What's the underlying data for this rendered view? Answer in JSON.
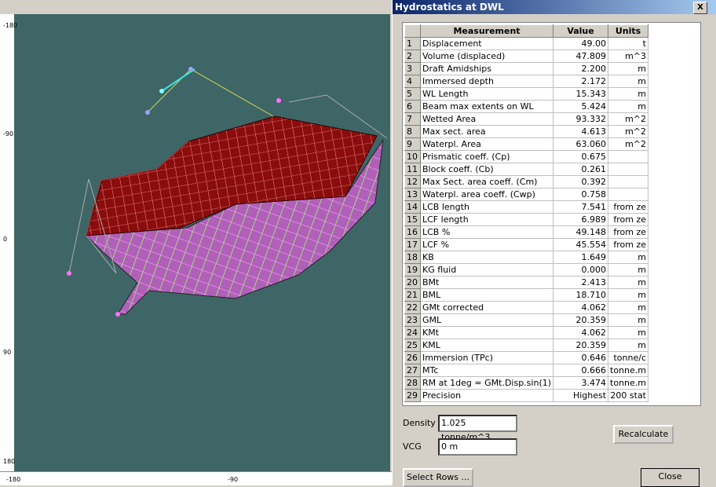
{
  "rulers": {
    "left": [
      "-180",
      "-90",
      "0",
      "90",
      "180"
    ],
    "bottom": [
      "-180",
      "-90"
    ]
  },
  "dialog": {
    "title": "Hydrostatics at DWL",
    "close_glyph": "X",
    "table": {
      "headers": [
        "Measurement",
        "Value",
        "Units"
      ],
      "rows": [
        {
          "n": 1,
          "measurement": "Displacement",
          "value": "49.00",
          "units": "t"
        },
        {
          "n": 2,
          "measurement": "Volume (displaced)",
          "value": "47.809",
          "units": "m^3"
        },
        {
          "n": 3,
          "measurement": "Draft Amidships",
          "value": "2.200",
          "units": "m"
        },
        {
          "n": 4,
          "measurement": "Immersed depth",
          "value": "2.172",
          "units": "m"
        },
        {
          "n": 5,
          "measurement": "WL Length",
          "value": "15.343",
          "units": "m"
        },
        {
          "n": 6,
          "measurement": "Beam max extents on WL",
          "value": "5.424",
          "units": "m"
        },
        {
          "n": 7,
          "measurement": "Wetted Area",
          "value": "93.332",
          "units": "m^2"
        },
        {
          "n": 8,
          "measurement": "Max sect. area",
          "value": "4.613",
          "units": "m^2"
        },
        {
          "n": 9,
          "measurement": "Waterpl. Area",
          "value": "63.060",
          "units": "m^2"
        },
        {
          "n": 10,
          "measurement": "Prismatic coeff. (Cp)",
          "value": "0.675"
        },
        {
          "n": 11,
          "measurement": "Block coeff. (Cb)",
          "value": "0.261"
        },
        {
          "n": 12,
          "measurement": "Max Sect. area coeff. (Cm)",
          "value": "0.392"
        },
        {
          "n": 13,
          "measurement": "Waterpl. area coeff. (Cwp)",
          "value": "0.758"
        },
        {
          "n": 14,
          "measurement": "LCB length",
          "value": "7.541",
          "units": "from ze"
        },
        {
          "n": 15,
          "measurement": "LCF length",
          "value": "6.989",
          "units": "from ze"
        },
        {
          "n": 16,
          "measurement": "LCB %",
          "value": "49.148",
          "units": "from ze"
        },
        {
          "n": 17,
          "measurement": "LCF %",
          "value": "45.554",
          "units": "from ze"
        },
        {
          "n": 18,
          "measurement": "KB",
          "value": "1.649",
          "units": "m"
        },
        {
          "n": 19,
          "measurement": "KG fluid",
          "value": "0.000",
          "units": "m"
        },
        {
          "n": 20,
          "measurement": "BMt",
          "value": "2.413",
          "units": "m"
        },
        {
          "n": 21,
          "measurement": "BML",
          "value": "18.710",
          "units": "m"
        },
        {
          "n": 22,
          "measurement": "GMt corrected",
          "value": "4.062",
          "units": "m"
        },
        {
          "n": 23,
          "measurement": "GML",
          "value": "20.359",
          "units": "m"
        },
        {
          "n": 24,
          "measurement": "KMt",
          "value": "4.062",
          "units": "m"
        },
        {
          "n": 25,
          "measurement": "KML",
          "value": "20.359",
          "units": "m"
        },
        {
          "n": 26,
          "measurement": "Immersion (TPc)",
          "value": "0.646",
          "units": "tonne/c"
        },
        {
          "n": 27,
          "measurement": "MTc",
          "value": "0.666",
          "units": "tonne.m"
        },
        {
          "n": 28,
          "measurement": "RM at 1deg = GMt.Disp.sin(1)",
          "value": "3.474",
          "units": "tonne.m"
        },
        {
          "n": 29,
          "measurement": "Precision",
          "value": "Highest",
          "units": "200 stat"
        }
      ]
    },
    "density_label": "Density",
    "density_value": "1.025 tonne/m^3",
    "vcg_label": "VCG",
    "vcg_value": "0 m",
    "recalculate": "Recalculate",
    "select_rows": "Select Rows ...",
    "close": "Close"
  }
}
